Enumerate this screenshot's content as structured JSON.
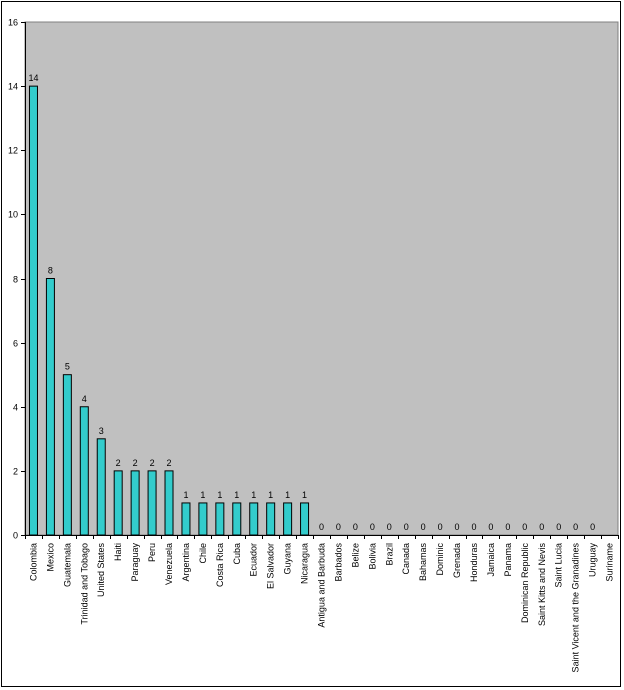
{
  "chart_data": {
    "type": "bar",
    "title": "",
    "xlabel": "",
    "ylabel": "",
    "ylim": [
      0,
      16
    ],
    "yticks": [
      0,
      2,
      4,
      6,
      8,
      10,
      12,
      14,
      16
    ],
    "grid": false,
    "legend": "none",
    "colors": {
      "plot_background": "#C0C0C0",
      "bar_fill": "#33CCCC",
      "bar_stroke": "#000000"
    },
    "categories": [
      "Colombia",
      "Mexico",
      "Guatemala",
      "Trinidad and Tobago",
      "United States",
      "Haiti",
      "Paraguay",
      "Peru",
      "Venezuela",
      "Argentina",
      "Chile",
      "Costa Rica",
      "Cuba",
      "Ecuador",
      "El Salvador",
      "Guyana",
      "Nicaragua",
      "Antigua and Barbuda",
      "Barbados",
      "Belize",
      "Bolivia",
      "Brazil",
      "Canada",
      "Bahamas",
      "Dominic",
      "Grenada",
      "Honduras",
      "Jamaica",
      "Panama",
      "Dominican Republic",
      "Saint Kitts and Nevis",
      "Saint Lucia",
      "Saint Vicent and the Granadines",
      "Uruguay",
      "Suriname"
    ],
    "values": [
      14,
      8,
      5,
      4,
      3,
      2,
      2,
      2,
      2,
      1,
      1,
      1,
      1,
      1,
      1,
      1,
      1,
      0,
      0,
      0,
      0,
      0,
      0,
      0,
      0,
      0,
      0,
      0,
      0,
      0,
      0,
      0,
      0,
      0,
      null
    ],
    "data_labels": [
      "14",
      "8",
      "5",
      "4",
      "3",
      "2",
      "2",
      "2",
      "2",
      "1",
      "1",
      "1",
      "1",
      "1",
      "1",
      "1",
      "1",
      "0",
      "0",
      "0",
      "0",
      "0",
      "0",
      "0",
      "0",
      "0",
      "0",
      "0",
      "0",
      "0",
      "0",
      "0",
      "0",
      "0",
      ""
    ]
  }
}
